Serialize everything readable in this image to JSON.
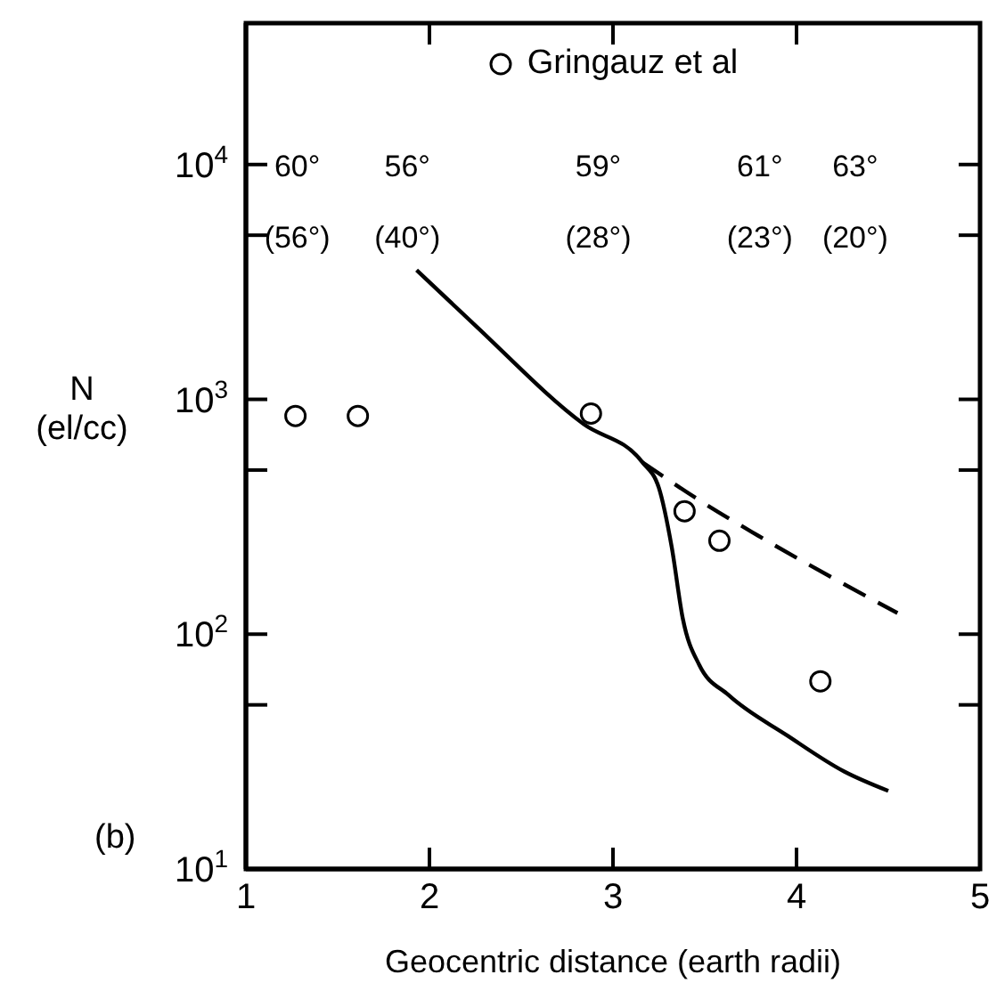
{
  "chart_data": {
    "type": "line",
    "xlabel": "Geocentric distance (earth radii)",
    "ylabel": "N (el/cc)",
    "log": "y",
    "xlim": [
      1,
      5
    ],
    "xticks": [
      1,
      2,
      3,
      4,
      5
    ],
    "ylim": [
      10,
      40000
    ],
    "yticks": [
      {
        "value": 10,
        "label": "10$^{1}$"
      },
      {
        "value": 50,
        "label": null
      },
      {
        "value": 100,
        "label": "10$^{2}$"
      },
      {
        "value": 500,
        "label": null
      },
      {
        "value": 1000,
        "label": "10$^{3}$"
      },
      {
        "value": 5000,
        "label": null
      },
      {
        "value": 10000,
        "label": "10$^{4}$"
      }
    ],
    "grid": false,
    "legend": "top",
    "series": [
      {
        "name": "Gringauz et al",
        "type": "scatter",
        "marker": "circle",
        "color": "#000000",
        "x": [
          1.27,
          1.61,
          2.88,
          3.39,
          3.58,
          4.13
        ],
        "values": [
          850,
          850,
          870,
          334,
          250,
          63
        ]
      },
      {
        "marker": "none",
        "line_style": "solid",
        "color": "#000000",
        "x": [
          1.93,
          2.24,
          2.84,
          3.16,
          3.25,
          3.32,
          3.38,
          3.47,
          3.63,
          3.95,
          4.26,
          4.5
        ],
        "values": [
          3550,
          2100,
          785,
          540,
          420,
          235,
          117,
          74,
          55,
          37,
          26,
          21.5
        ]
      },
      {
        "marker": "none",
        "line_style": "dashed",
        "color": "#000000",
        "x": [
          3.16,
          3.47,
          3.79,
          4.55
        ],
        "values": [
          540,
          372,
          263,
          123
        ]
      }
    ],
    "annotations": [
      "60°",
      "56°",
      "59°",
      "61°",
      "63°",
      "(56°)",
      "(40°)",
      "(28°)",
      "(23°)",
      "(20°)",
      "(b)"
    ]
  }
}
